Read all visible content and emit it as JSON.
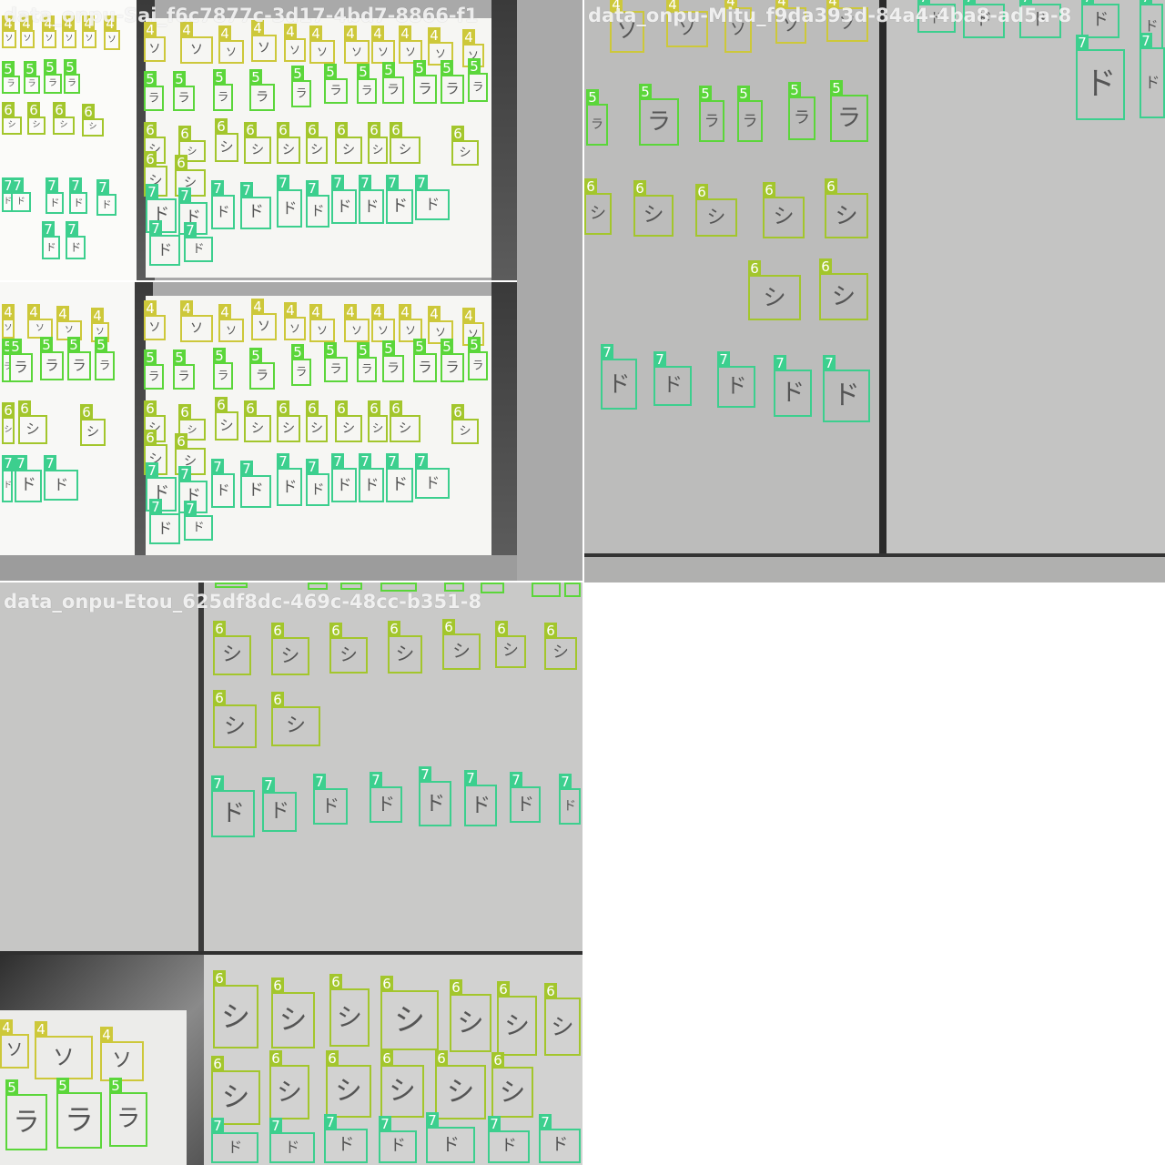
{
  "tiles": [
    {
      "title": "data_onpu-Sai_f6c7877c-3d17-4bd7-8866-f1"
    },
    {
      "title": "data_onpu-Mitu_f9da393d-84a4-4ba8-ad5a-8"
    },
    {
      "title": "data_onpu-Etou_625df8dc-469c-48cc-b351-8"
    }
  ],
  "class_colors": {
    "4": "#cdc83a",
    "5": "#5bd63a",
    "6": "#a3c62c",
    "7": "#3ccf8e"
  },
  "glyphs": {
    "4": "ソ",
    "5": "ラ",
    "6": "シ",
    "7": "ド"
  }
}
